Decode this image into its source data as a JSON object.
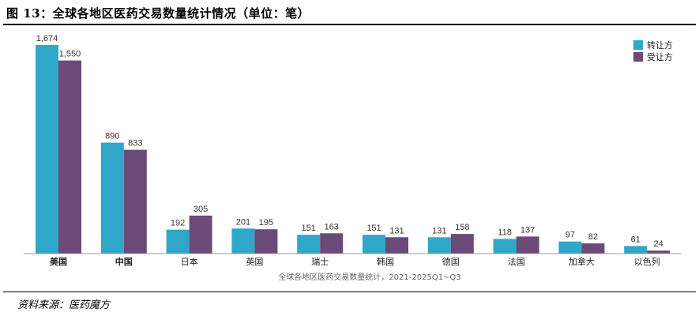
{
  "figure": {
    "title": "图 13：全球各地区医药交易数量统计情况（单位：笔）",
    "source": "资料来源：医药魔方",
    "colors": {
      "transfer_out": "#2fa7c9",
      "transfer_in": "#6b4a78"
    }
  },
  "chart_data": {
    "type": "bar",
    "title": "全球各地区医药交易数量统计情况",
    "unit": "笔",
    "caption": "全球各地区医药交易数量统计，2021-2025Q1~Q3",
    "categories": [
      "美国",
      "中国",
      "日本",
      "英国",
      "瑞士",
      "韩国",
      "德国",
      "法国",
      "加拿大",
      "以色列"
    ],
    "series": [
      {
        "name": "转让方",
        "color": "#2fa7c9",
        "values": [
          1674,
          890,
          192,
          201,
          151,
          151,
          131,
          118,
          97,
          61
        ],
        "labels": [
          "1,674",
          "890",
          "192",
          "201",
          "151",
          "151",
          "131",
          "118",
          "97",
          "61"
        ]
      },
      {
        "name": "受让方",
        "color": "#6b4a78",
        "values": [
          1550,
          833,
          305,
          195,
          163,
          131,
          158,
          137,
          82,
          24
        ],
        "labels": [
          "1,550",
          "833",
          "305",
          "195",
          "163",
          "131",
          "158",
          "137",
          "82",
          "24"
        ]
      }
    ],
    "ylim": [
      0,
      1674
    ],
    "legend": "top-right",
    "grid": false
  }
}
